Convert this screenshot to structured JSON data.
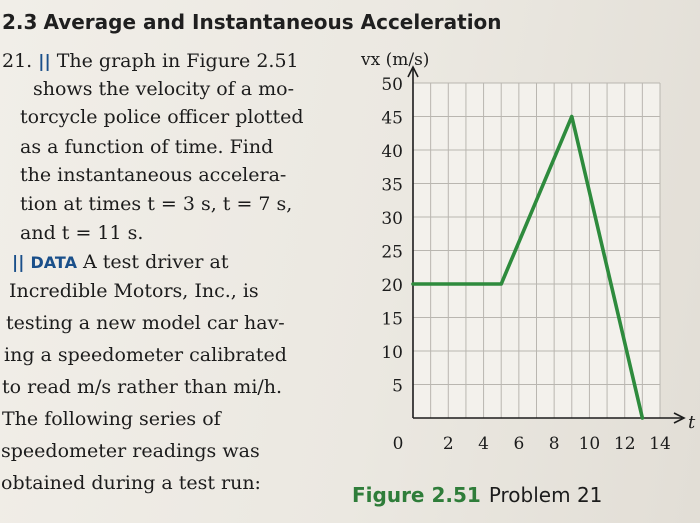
{
  "section": {
    "number": "2.3",
    "title": "Average and Instantaneous Acceleration"
  },
  "problem": {
    "number": "21.",
    "difficulty": "||",
    "lines": [
      "The graph in Figure 2.51",
      "shows the velocity of a mo-",
      "torcycle police officer plotted",
      "as a function of time. Find",
      "the instantaneous accelera-",
      "tion at times t = 3 s, t = 7 s,",
      "and t = 11 s."
    ]
  },
  "next_problem": {
    "difficulty": "||",
    "tag": "DATA",
    "lines": [
      "A test driver at",
      "Incredible Motors, Inc., is",
      "testing a new model car hav-",
      "ing a speedometer calibrated",
      "to read m/s rather than mi/h.",
      "The following series of",
      "speedometer readings was",
      "obtained during a test run:"
    ]
  },
  "figure": {
    "label": "Figure 2.51",
    "caption": "Problem 21"
  },
  "chart_data": {
    "type": "line",
    "title": "",
    "xlabel": "t",
    "ylabel": "vx (m/s)",
    "xlim": [
      0,
      14
    ],
    "ylim": [
      0,
      50
    ],
    "x_ticks": [
      "0",
      "2",
      "4",
      "6",
      "8",
      "10",
      "12",
      "14"
    ],
    "y_ticks": [
      "5",
      "10",
      "15",
      "20",
      "25",
      "30",
      "35",
      "40",
      "45",
      "50"
    ],
    "grid": true,
    "line_color": "#2e8b3d",
    "series": [
      {
        "x": [
          0,
          5,
          9,
          13
        ],
        "y": [
          20,
          20,
          45,
          0
        ]
      }
    ]
  }
}
